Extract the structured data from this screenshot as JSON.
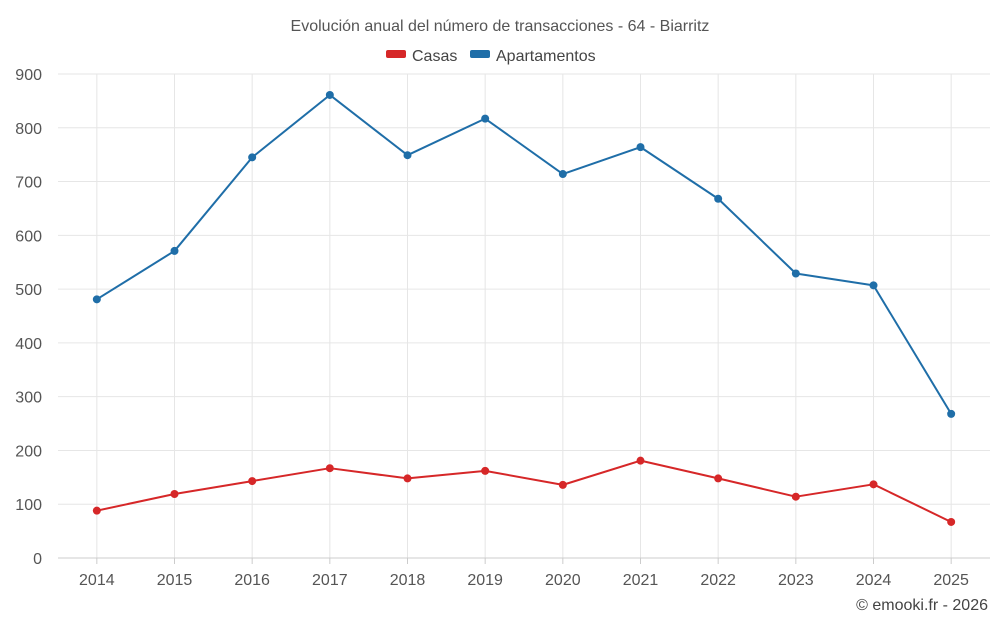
{
  "chart_data": {
    "type": "line",
    "title": "Evolución anual del número de transacciones - 64 - Biarritz",
    "categories": [
      "2014",
      "2015",
      "2016",
      "2017",
      "2018",
      "2019",
      "2020",
      "2021",
      "2022",
      "2023",
      "2024",
      "2025"
    ],
    "series": [
      {
        "name": "Casas",
        "color": "#d62728",
        "values": [
          88,
          119,
          143,
          167,
          148,
          162,
          136,
          181,
          148,
          114,
          137,
          67
        ]
      },
      {
        "name": "Apartamentos",
        "color": "#1f6ea8",
        "values": [
          481,
          571,
          745,
          861,
          749,
          817,
          714,
          764,
          668,
          529,
          507,
          268
        ]
      }
    ],
    "xlabel": "",
    "ylabel": "",
    "ylim": [
      0,
      900
    ],
    "yticks": [
      0,
      100,
      200,
      300,
      400,
      500,
      600,
      700,
      800,
      900
    ],
    "grid": true,
    "legend": "top-center"
  },
  "credit": "© emooki.fr - 2026"
}
